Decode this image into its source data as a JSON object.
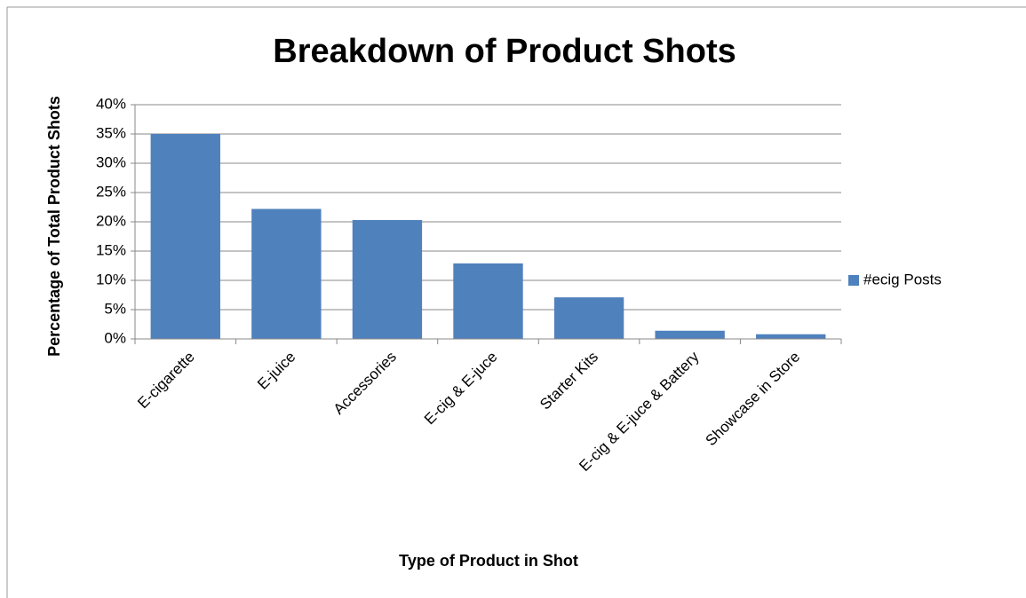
{
  "chart_data": {
    "type": "bar",
    "title": "Breakdown of Product Shots",
    "x_label": "Type of Product in Shot",
    "y_label": "Percentage of Total Product Shots",
    "categories": [
      "E-cigarette",
      "E-juice",
      "Accessories",
      "E-cig & E-juce",
      "Starter Kits",
      "E-cig & E-juce & Battery",
      "Showcase in Store"
    ],
    "series": [
      {
        "name": "#ecig Posts",
        "color": "#4f81bd",
        "values": [
          35,
          22.2,
          20.3,
          12.9,
          7.1,
          1.4,
          0.8
        ]
      }
    ],
    "ylim": [
      0,
      40
    ],
    "yticks": [
      {
        "value": 0,
        "label": "0%"
      },
      {
        "value": 5,
        "label": "5%"
      },
      {
        "value": 10,
        "label": "10%"
      },
      {
        "value": 15,
        "label": "15%"
      },
      {
        "value": 20,
        "label": "20%"
      },
      {
        "value": 25,
        "label": "25%"
      },
      {
        "value": 30,
        "label": "30%"
      },
      {
        "value": 35,
        "label": "35%"
      },
      {
        "value": 40,
        "label": "40%"
      }
    ],
    "grid": true,
    "legend": "right"
  }
}
